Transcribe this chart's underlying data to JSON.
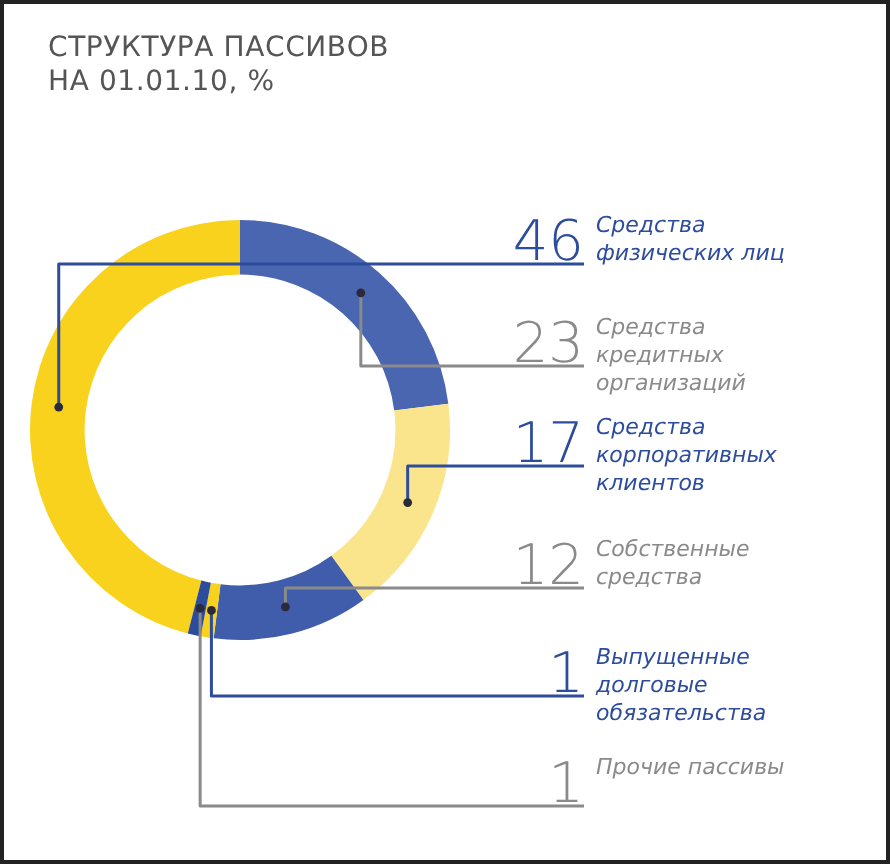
{
  "chart_data": {
    "type": "donut",
    "title": "СТРУКТУРА ПАССИВОВ НА 01.01.10, %",
    "categories": [
      "Средства физических лиц",
      "Средства кредитных организаций",
      "Средства корпоративных клиентов",
      "Собственные средства",
      "Выпущенные долговые обязательства",
      "Прочие пассивы"
    ],
    "values": [
      46,
      23,
      17,
      12,
      1,
      1
    ],
    "colors": [
      "#f8d21c",
      "#4a66b0",
      "#fbe58c",
      "#3f5dab",
      "#f8d21c",
      "#2d4c9c"
    ],
    "data_labels": true,
    "legend": false
  }
}
